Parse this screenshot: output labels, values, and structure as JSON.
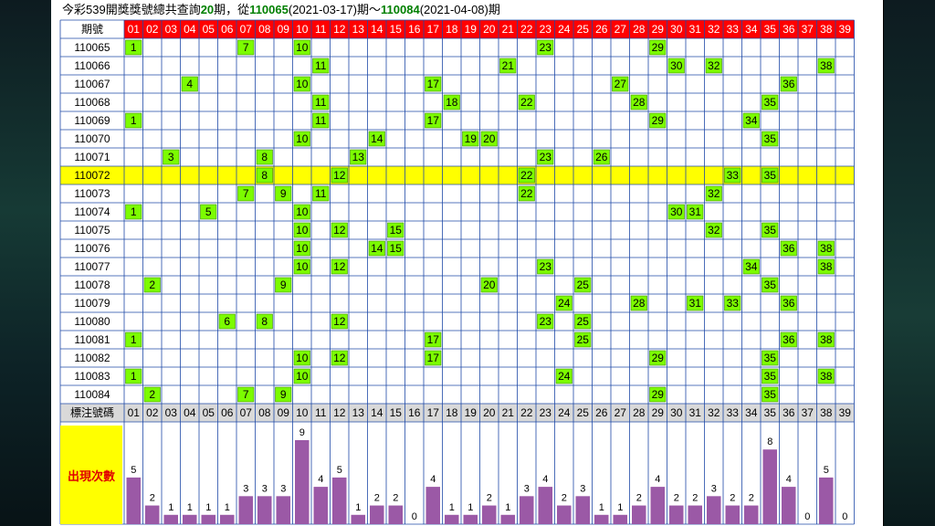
{
  "title": {
    "prefix": "今彩539開獎獎號總共查詢",
    "count": "20",
    "mid1": "期，從",
    "from_period": "110065",
    "from_date": "(2021-03-17)",
    "mid2": "期～",
    "to_period": "110084",
    "to_date": "(2021-04-08)",
    "suffix": "期"
  },
  "table": {
    "period_header": "期號",
    "footer_label": "標注號碼",
    "numbers": [
      "01",
      "02",
      "03",
      "04",
      "05",
      "06",
      "07",
      "08",
      "09",
      "10",
      "11",
      "12",
      "13",
      "14",
      "15",
      "16",
      "17",
      "18",
      "19",
      "20",
      "21",
      "22",
      "23",
      "24",
      "25",
      "26",
      "27",
      "28",
      "29",
      "30",
      "31",
      "32",
      "33",
      "34",
      "35",
      "36",
      "37",
      "38",
      "39"
    ],
    "highlight_period": "110072",
    "rows": [
      {
        "period": "110065",
        "hits": [
          1,
          7,
          10,
          23,
          29
        ]
      },
      {
        "period": "110066",
        "hits": [
          11,
          21,
          30,
          32,
          38
        ]
      },
      {
        "period": "110067",
        "hits": [
          4,
          10,
          17,
          27,
          36
        ]
      },
      {
        "period": "110068",
        "hits": [
          11,
          18,
          22,
          28,
          35
        ]
      },
      {
        "period": "110069",
        "hits": [
          1,
          11,
          17,
          29,
          34
        ]
      },
      {
        "period": "110070",
        "hits": [
          10,
          14,
          19,
          20,
          35
        ]
      },
      {
        "period": "110071",
        "hits": [
          3,
          8,
          13,
          23,
          26
        ]
      },
      {
        "period": "110072",
        "hits": [
          8,
          12,
          22,
          33,
          35
        ]
      },
      {
        "period": "110073",
        "hits": [
          7,
          9,
          11,
          22,
          32
        ]
      },
      {
        "period": "110074",
        "hits": [
          1,
          5,
          10,
          30,
          31
        ]
      },
      {
        "period": "110075",
        "hits": [
          10,
          12,
          15,
          32,
          35
        ]
      },
      {
        "period": "110076",
        "hits": [
          10,
          14,
          15,
          36,
          38
        ]
      },
      {
        "period": "110077",
        "hits": [
          10,
          12,
          23,
          34,
          38
        ]
      },
      {
        "period": "110078",
        "hits": [
          2,
          9,
          20,
          25,
          35
        ]
      },
      {
        "period": "110079",
        "hits": [
          24,
          28,
          31,
          33,
          36
        ]
      },
      {
        "period": "110080",
        "hits": [
          6,
          8,
          12,
          23,
          25
        ]
      },
      {
        "period": "110081",
        "hits": [
          1,
          17,
          25,
          36,
          38
        ]
      },
      {
        "period": "110082",
        "hits": [
          10,
          12,
          17,
          29,
          35
        ]
      },
      {
        "period": "110083",
        "hits": [
          1,
          10,
          24,
          35,
          38
        ]
      },
      {
        "period": "110084",
        "hits": [
          2,
          7,
          9,
          29,
          35
        ]
      }
    ]
  },
  "colors": {
    "header_bg": "#ff0000",
    "header_text": "#ffffff",
    "hit_bg": "#7cfc00",
    "highlight_row": "#ffff00",
    "grid_line": "#1f4aa8",
    "footer_bg": "#d9d9d9",
    "bar": "#9b59a6"
  },
  "chart_data": {
    "type": "bar",
    "label": "出現次數",
    "categories": [
      "01",
      "02",
      "03",
      "04",
      "05",
      "06",
      "07",
      "08",
      "09",
      "10",
      "11",
      "12",
      "13",
      "14",
      "15",
      "16",
      "17",
      "18",
      "19",
      "20",
      "21",
      "22",
      "23",
      "24",
      "25",
      "26",
      "27",
      "28",
      "29",
      "30",
      "31",
      "32",
      "33",
      "34",
      "35",
      "36",
      "37",
      "38",
      "39"
    ],
    "values": [
      5,
      2,
      1,
      1,
      1,
      1,
      3,
      3,
      3,
      9,
      4,
      5,
      1,
      2,
      2,
      0,
      4,
      1,
      1,
      2,
      1,
      3,
      4,
      2,
      3,
      1,
      1,
      2,
      4,
      2,
      2,
      3,
      2,
      2,
      8,
      4,
      0,
      5,
      0
    ],
    "ylim": [
      0,
      9
    ]
  }
}
